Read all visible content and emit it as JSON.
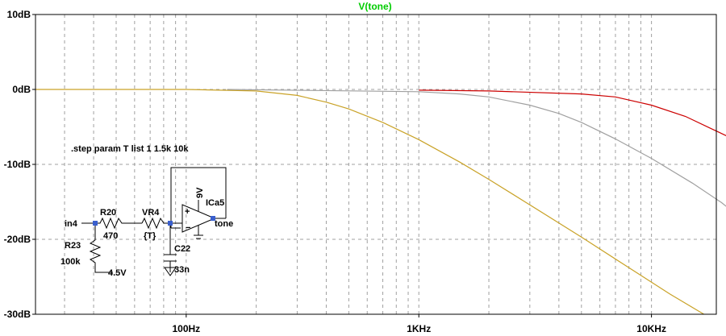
{
  "chart_data": {
    "type": "line",
    "title": "V(tone)",
    "title_color": "#00cc00",
    "x_scale": "log",
    "xlim_hz": [
      22.5,
      1900
    ],
    "ylim_db": [
      -30,
      10
    ],
    "y_ticks": [
      10,
      0,
      -10,
      -20,
      -30
    ],
    "y_tick_labels": [
      "10dB",
      "0dB",
      "-10dB",
      "-20dB",
      "-30dB"
    ],
    "x_ticks": [
      100,
      1000,
      10000
    ],
    "x_tick_labels": [
      "100Hz",
      "1KHz",
      "10KHz"
    ],
    "grid": true,
    "series": [
      {
        "color": "#c9a227",
        "points": [
          [
            22.5,
            0
          ],
          [
            100,
            0
          ],
          [
            200,
            -0.2
          ],
          [
            300,
            -0.8
          ],
          [
            400,
            -1.7
          ],
          [
            500,
            -2.6
          ],
          [
            700,
            -4.4
          ],
          [
            1000,
            -6.7
          ],
          [
            1500,
            -9.7
          ],
          [
            2000,
            -12.0
          ],
          [
            3000,
            -15.4
          ],
          [
            5000,
            -19.7
          ],
          [
            8000,
            -23.8
          ],
          [
            12000,
            -27.3
          ],
          [
            16800,
            -30
          ]
        ]
      },
      {
        "color": "#a0a0a0",
        "points": [
          [
            150,
            0
          ],
          [
            1000,
            -0.3
          ],
          [
            1500,
            -0.6
          ],
          [
            2000,
            -1.0
          ],
          [
            3000,
            -2.1
          ],
          [
            4000,
            -3.2
          ],
          [
            5000,
            -4.4
          ],
          [
            7000,
            -6.6
          ],
          [
            10000,
            -9.2
          ],
          [
            15000,
            -12.5
          ],
          [
            20000,
            -15.1
          ],
          [
            25000,
            -17.5
          ]
        ]
      },
      {
        "color": "#cc0000",
        "points": [
          [
            1000,
            -0.1
          ],
          [
            2000,
            -0.2
          ],
          [
            5000,
            -0.6
          ],
          [
            7000,
            -1.0
          ],
          [
            10000,
            -2.1
          ],
          [
            14000,
            -3.6
          ],
          [
            18000,
            -5.2
          ],
          [
            25000,
            -7.3
          ]
        ]
      }
    ],
    "annotations": {
      "directive": ".step param T list 1 1.5k 10k",
      "labels": [
        "in4",
        "R20",
        "470",
        "VR4",
        "{T}",
        "ICa5",
        "9V",
        "tone",
        "R23",
        "100k",
        "4.5V",
        "C22",
        "33n"
      ]
    }
  }
}
